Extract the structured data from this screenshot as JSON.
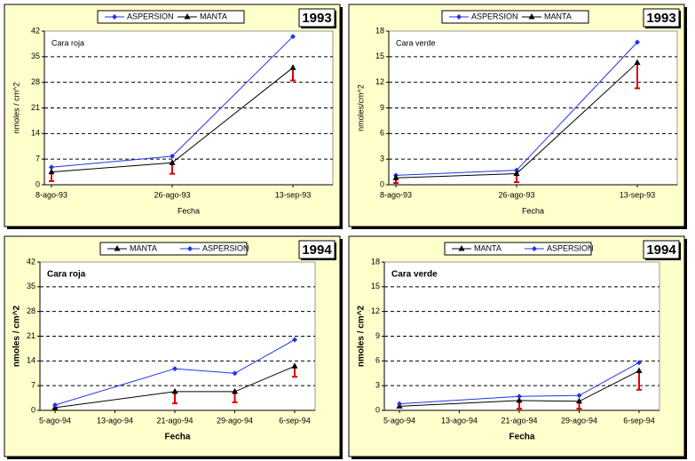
{
  "chart_data": [
    {
      "type": "line",
      "year": "1993",
      "annotation": "Cara roja",
      "y_label": "nmoles / cm^2",
      "x_label": "Fecha",
      "categories": [
        "8-ago-93",
        "26-ago-93",
        "13-sep-93"
      ],
      "ylim": [
        0,
        42
      ],
      "yticks": [
        0,
        7,
        14,
        21,
        28,
        35,
        42
      ],
      "grid": true,
      "series": [
        {
          "name": "ASPERSION",
          "color": "#2233ee",
          "marker": "diamond",
          "values": [
            4.8,
            7.8,
            40.5
          ]
        },
        {
          "name": "MANTA",
          "color": "#000000",
          "marker": "triangle",
          "values": [
            3.5,
            6,
            32
          ],
          "errors": [
            2.5,
            3,
            3.5
          ],
          "error_color": "#dd0000"
        }
      ]
    },
    {
      "type": "line",
      "year": "1993",
      "annotation": "Cara verde",
      "y_label": "nmoles/cm^2",
      "x_label": "Fecha",
      "categories": [
        "8-ago-93",
        "26-ago-93",
        "13-sep-93"
      ],
      "ylim": [
        0,
        18
      ],
      "yticks": [
        0,
        3,
        6,
        9,
        12,
        15,
        18
      ],
      "grid": true,
      "series": [
        {
          "name": "ASPERSION",
          "color": "#2233ee",
          "marker": "diamond",
          "values": [
            1.1,
            1.7,
            16.7
          ]
        },
        {
          "name": "MANTA",
          "color": "#000000",
          "marker": "triangle",
          "values": [
            0.8,
            1.3,
            14.3
          ],
          "errors": [
            0.6,
            1.0,
            3.0
          ],
          "error_color": "#dd0000"
        }
      ]
    },
    {
      "type": "line",
      "year": "1994",
      "annotation": "Cara roja",
      "y_label": "nmoles / cm^2",
      "x_label": "Fecha",
      "categories": [
        "5-ago-94",
        "13-ago-94",
        "21-ago-94",
        "29-ago-94",
        "6-sep-94"
      ],
      "ylim": [
        0,
        42
      ],
      "yticks": [
        0,
        7,
        14,
        21,
        28,
        35,
        42
      ],
      "grid": true,
      "series": [
        {
          "name": "MANTA",
          "color": "#000000",
          "marker": "triangle",
          "x": [
            "5-ago-94",
            "21-ago-94",
            "29-ago-94",
            "6-sep-94"
          ],
          "values": [
            0.8,
            5.3,
            5.3,
            12.5
          ],
          "errors": [
            null,
            3.3,
            3,
            3
          ],
          "error_color": "#dd0000"
        },
        {
          "name": "ASPERSION",
          "color": "#2233ee",
          "marker": "diamond",
          "x": [
            "5-ago-94",
            "21-ago-94",
            "29-ago-94",
            "6-sep-94"
          ],
          "values": [
            1.5,
            11.8,
            10.5,
            20
          ]
        }
      ]
    },
    {
      "type": "line",
      "year": "1994",
      "annotation": "Cara verde",
      "y_label": "nmoles / cm^2",
      "x_label": "Fecha",
      "categories": [
        "5-ago-94",
        "13-ago-94",
        "21-ago-94",
        "29-ago-94",
        "6-sep-94"
      ],
      "ylim": [
        0,
        18
      ],
      "yticks": [
        0,
        3,
        6,
        9,
        12,
        15,
        18
      ],
      "grid": true,
      "series": [
        {
          "name": "MANTA",
          "color": "#000000",
          "marker": "triangle",
          "x": [
            "5-ago-94",
            "21-ago-94",
            "29-ago-94",
            "6-sep-94"
          ],
          "values": [
            0.5,
            1.2,
            1.1,
            4.8
          ],
          "errors": [
            null,
            1.0,
            0.9,
            2.3
          ],
          "error_color": "#dd0000"
        },
        {
          "name": "ASPERSION",
          "color": "#2233ee",
          "marker": "diamond",
          "x": [
            "5-ago-94",
            "21-ago-94",
            "29-ago-94",
            "6-sep-94"
          ],
          "values": [
            0.8,
            1.7,
            1.8,
            5.8
          ]
        }
      ]
    }
  ]
}
